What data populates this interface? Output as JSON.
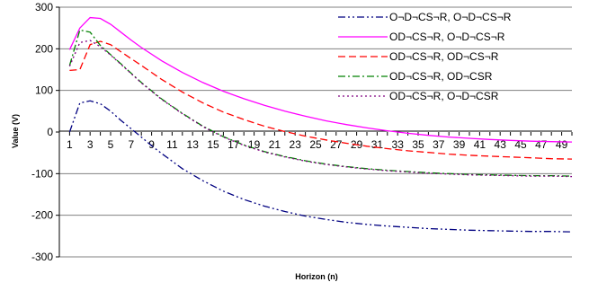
{
  "chart_data": {
    "type": "line",
    "xlabel": "Horizon (n)",
    "ylabel": "Value (V)",
    "ylim": [
      -300,
      300
    ],
    "yticks": [
      -300,
      -200,
      -100,
      0,
      100,
      200,
      300
    ],
    "xlim": [
      0,
      50
    ],
    "xticks": [
      1,
      3,
      5,
      7,
      9,
      11,
      13,
      15,
      17,
      19,
      21,
      23,
      25,
      27,
      29,
      31,
      33,
      35,
      37,
      39,
      41,
      43,
      45,
      47,
      49
    ],
    "grid": "horizontal",
    "legend_position": "top-right",
    "series": [
      {
        "name": "O¬D¬CS¬R, O¬D¬CS¬R",
        "color": "#000080",
        "dash": "dash-dot-dot",
        "x": [
          1,
          2,
          3,
          4,
          5,
          6,
          7,
          8,
          9,
          10,
          12,
          14,
          16,
          18,
          20,
          22,
          24,
          26,
          28,
          30,
          32,
          34,
          36,
          38,
          40,
          42,
          44,
          46,
          48,
          50
        ],
        "values": [
          0,
          70,
          75,
          68,
          50,
          28,
          8,
          -12,
          -33,
          -52,
          -88,
          -117,
          -142,
          -162,
          -178,
          -191,
          -202,
          -210,
          -217,
          -222,
          -226,
          -229,
          -232,
          -234,
          -236,
          -237,
          -238,
          -239,
          -239,
          -240
        ]
      },
      {
        "name": "OD¬CS¬R, O¬D¬CS¬R",
        "color": "#ff00ff",
        "dash": "solid",
        "x": [
          1,
          2,
          3,
          4,
          5,
          6,
          7,
          8,
          10,
          12,
          14,
          16,
          18,
          20,
          22,
          24,
          26,
          28,
          30,
          32,
          34,
          36,
          38,
          40,
          42,
          44,
          46,
          48,
          50
        ],
        "values": [
          198,
          250,
          275,
          273,
          259,
          240,
          221,
          203,
          171,
          143,
          119,
          98,
          80,
          64,
          50,
          38,
          27,
          18,
          10,
          3,
          -3,
          -8,
          -12,
          -15,
          -18,
          -20,
          -22,
          -23,
          -24
        ]
      },
      {
        "name": "OD¬CS¬R, OD¬CS¬R",
        "color": "#ff0000",
        "dash": "dash",
        "x": [
          1,
          2,
          3,
          4,
          5,
          6,
          8,
          10,
          12,
          14,
          16,
          18,
          20,
          22,
          24,
          26,
          28,
          30,
          32,
          34,
          36,
          38,
          40,
          42,
          44,
          46,
          48,
          50
        ],
        "values": [
          148,
          150,
          210,
          218,
          210,
          193,
          160,
          126,
          96,
          70,
          48,
          30,
          14,
          1,
          -10,
          -19,
          -27,
          -34,
          -40,
          -45,
          -49,
          -53,
          -56,
          -58,
          -60,
          -62,
          -64,
          -65
        ]
      },
      {
        "name": "OD¬CS¬R, OD¬CSR",
        "color": "#008000",
        "dash": "dash-dot",
        "x": [
          1,
          2,
          3,
          4,
          5,
          6,
          8,
          10,
          12,
          14,
          16,
          18,
          20,
          22,
          24,
          26,
          28,
          30,
          32,
          34,
          36,
          38,
          40,
          42,
          44,
          46,
          48,
          50
        ],
        "values": [
          160,
          245,
          240,
          208,
          186,
          164,
          119,
          79,
          45,
          14,
          -11,
          -31,
          -47,
          -59,
          -69,
          -77,
          -83,
          -88,
          -92,
          -95,
          -98,
          -100,
          -102,
          -103,
          -104,
          -105,
          -105,
          -106
        ]
      },
      {
        "name": "OD¬CS¬R, O¬D¬CSR",
        "color": "#800080",
        "dash": "dot",
        "x": [
          1,
          2,
          3,
          4,
          5,
          6,
          8,
          10,
          12,
          14,
          16,
          18,
          20,
          22,
          24,
          26,
          28,
          30,
          32,
          34,
          36,
          38,
          40,
          42,
          44,
          46,
          48,
          50
        ],
        "values": [
          158,
          215,
          220,
          205,
          185,
          163,
          118,
          78,
          44,
          13,
          -12,
          -32,
          -48,
          -60,
          -70,
          -78,
          -84,
          -89,
          -93,
          -96,
          -99,
          -101,
          -103,
          -104,
          -105,
          -106,
          -106,
          -107
        ]
      }
    ]
  }
}
